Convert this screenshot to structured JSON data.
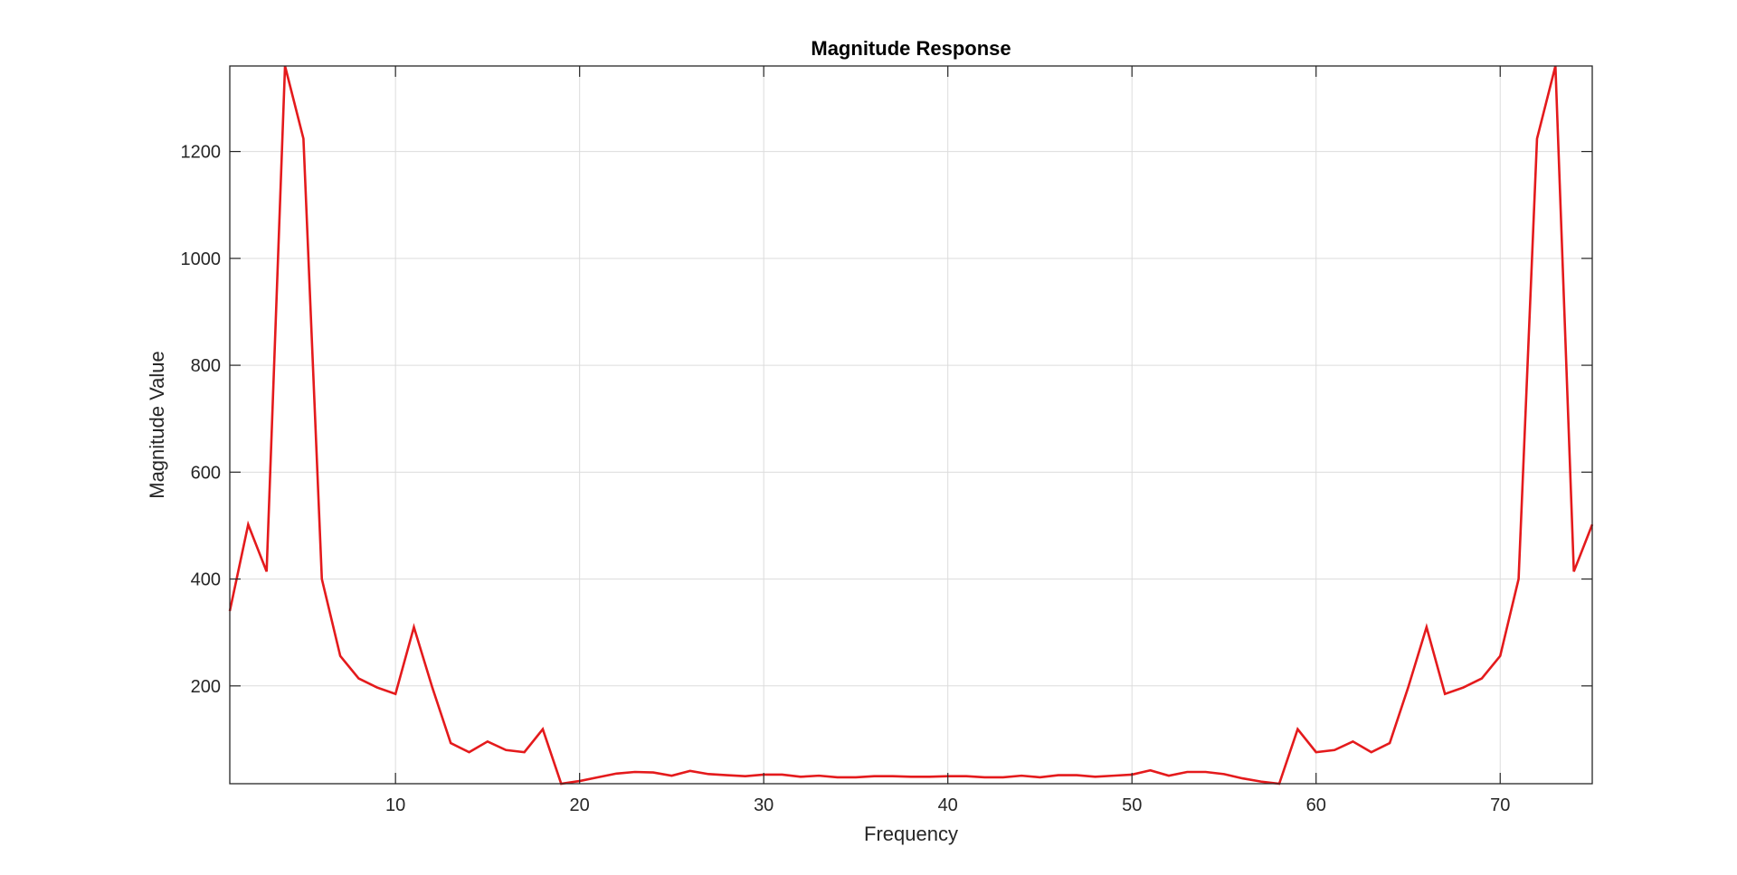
{
  "chart_data": {
    "type": "line",
    "title": "Magnitude Response",
    "xlabel": "Frequency",
    "ylabel": "Magnitude Value",
    "xlim": [
      1,
      75
    ],
    "ylim": [
      17,
      1360
    ],
    "xticks": [
      10,
      20,
      30,
      40,
      50,
      60,
      70
    ],
    "yticks": [
      200,
      400,
      600,
      800,
      1000,
      1200
    ],
    "grid": true,
    "box": true,
    "line_color": "#e41a1c",
    "grid_color": "#dcdcdc",
    "axis_color": "#262626",
    "series": [
      {
        "x": [
          1,
          2,
          3,
          4,
          5,
          6,
          7,
          8,
          9,
          10,
          11,
          12,
          13,
          14,
          15,
          16,
          17,
          18,
          19,
          20,
          21,
          22,
          23,
          24,
          25,
          26,
          27,
          28,
          29,
          30,
          31,
          32,
          33,
          34,
          35,
          36,
          37,
          38,
          39,
          40,
          41,
          42,
          43,
          44,
          45,
          46,
          47,
          48,
          49,
          50,
          51,
          52,
          53,
          54,
          55,
          56,
          57,
          58,
          59,
          60,
          61,
          62,
          63,
          64,
          65,
          66,
          67,
          68,
          69,
          70,
          71,
          72,
          73,
          74,
          75
        ],
        "values": [
          340,
          502,
          414,
          1360,
          1224,
          400,
          256,
          214,
          197,
          185,
          310,
          197,
          93,
          76,
          96,
          80,
          76,
          119,
          17,
          22,
          29,
          36,
          39,
          38,
          32,
          41,
          35,
          33,
          31,
          34,
          34,
          30,
          32,
          29,
          29,
          31,
          31,
          30,
          30,
          31,
          31,
          29,
          29,
          32,
          29,
          33,
          33,
          30,
          32,
          34,
          42,
          32,
          39,
          39,
          35,
          27,
          21,
          17,
          119,
          76,
          80,
          96,
          76,
          93,
          197,
          310,
          185,
          197,
          214,
          256,
          400,
          1224,
          1360,
          414,
          502
        ]
      }
    ]
  }
}
